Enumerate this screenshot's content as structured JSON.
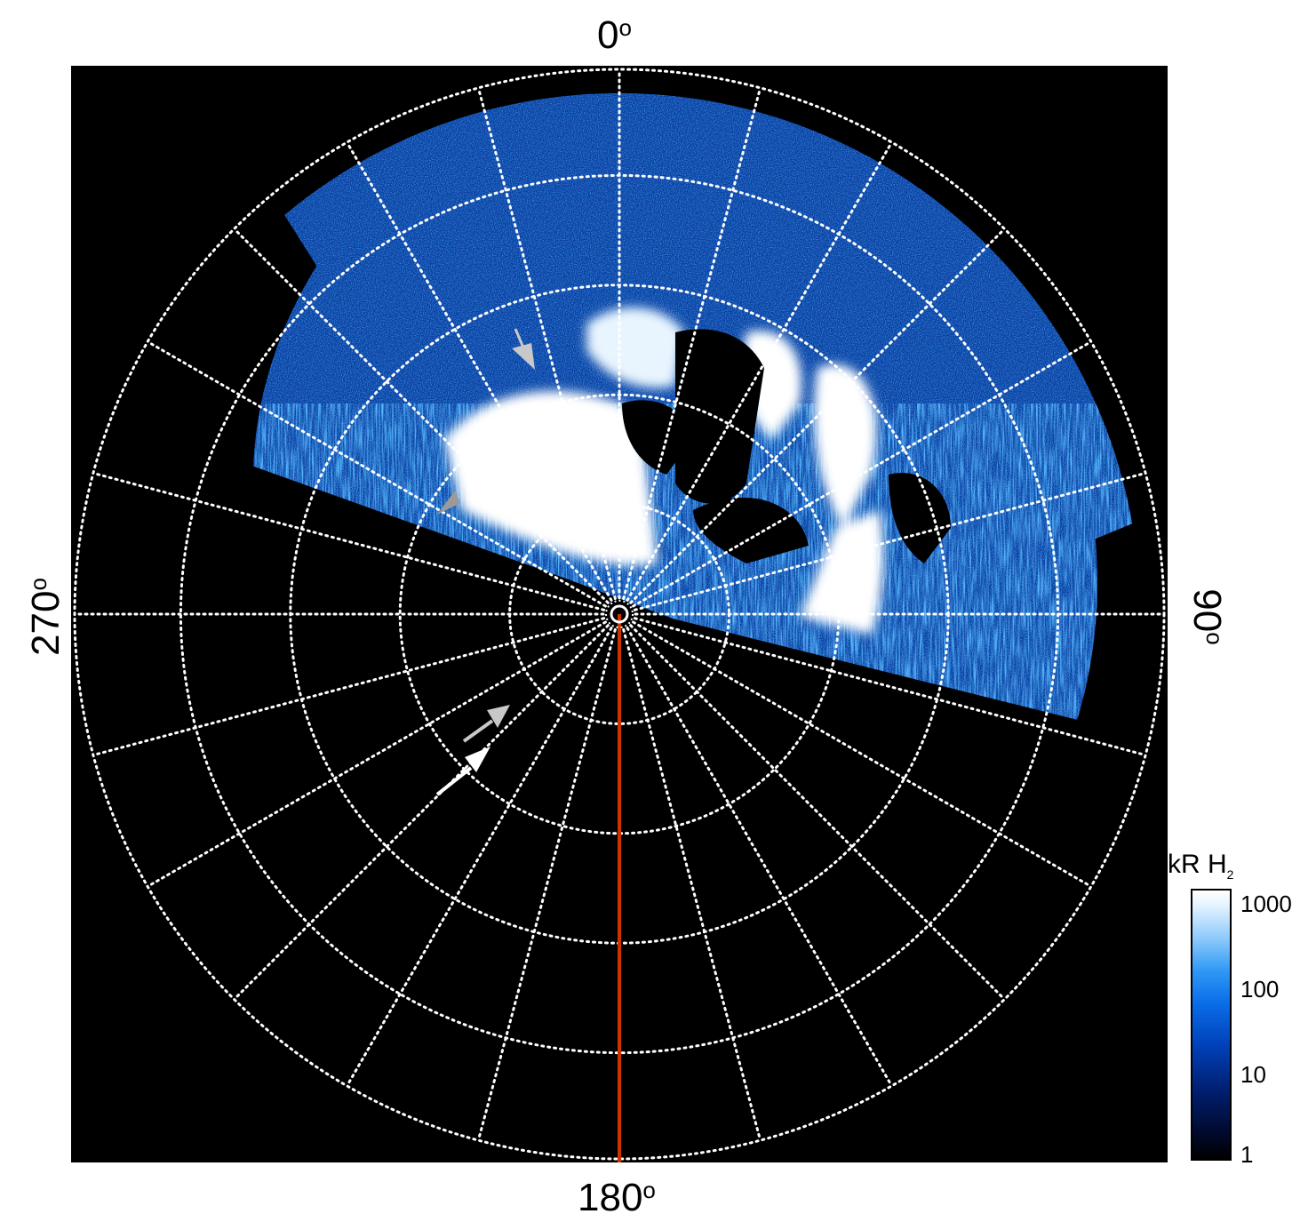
{
  "figure": {
    "axis_labels": {
      "top": "0",
      "right": "90",
      "bottom": "180",
      "left": "270",
      "degree_symbol": "o"
    },
    "colorbar": {
      "title_main": "kR H",
      "title_subscript": "2",
      "ticks": [
        "1000",
        "100",
        "10",
        "1"
      ],
      "scale": "log",
      "colors": [
        "#000000",
        "#001e6e",
        "#0a6de8",
        "#8cc9fb",
        "#ffffff"
      ]
    },
    "colors": {
      "background": "#000000",
      "grid": "#ffffff",
      "meridian_line": "#cc3300",
      "emission_bright": "#ffffff",
      "emission_mid": "#1e7fe8",
      "emission_low": "#0a3c9e",
      "arrow_white": "#ffffff",
      "arrow_grey": "#c8c8c8"
    },
    "grid": {
      "rings": 5,
      "spokes_deg": 15,
      "style": "dotted"
    },
    "annotations": [
      "arrow-grey-upper",
      "arrow-grey-left",
      "arrow-grey-lower",
      "arrow-white-lower"
    ]
  }
}
